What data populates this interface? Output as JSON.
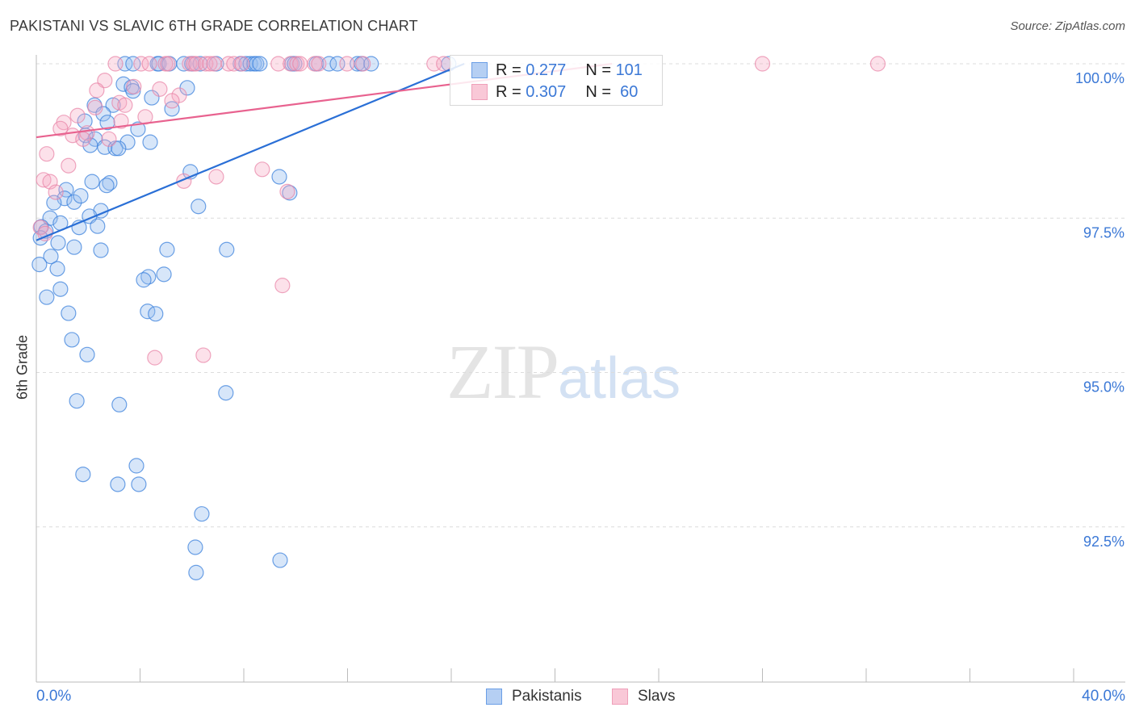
{
  "title": "PAKISTANI VS SLAVIC 6TH GRADE CORRELATION CHART",
  "source": "Source: ZipAtlas.com",
  "watermark": {
    "zip": "ZIP",
    "atlas": "atlas"
  },
  "legend": {
    "rows": [
      {
        "r_label": "R = ",
        "r_value": "0.277",
        "n_label": "N = ",
        "n_value": "101"
      },
      {
        "r_label": "R = ",
        "r_value": "0.307",
        "n_label": "N = ",
        "n_value": "60"
      }
    ]
  },
  "chart_data": {
    "type": "scatter",
    "title": "PAKISTANI VS SLAVIC 6TH GRADE CORRELATION CHART",
    "xlabel": "",
    "ylabel": "6th Grade",
    "xlim": [
      0,
      40
    ],
    "ylim": [
      90,
      100.3
    ],
    "x_tick_labels": [
      "0.0%",
      "40.0%"
    ],
    "y_ticks": [
      100,
      97.5,
      95,
      92.5
    ],
    "y_tick_labels": [
      "100.0%",
      "97.5%",
      "95.0%",
      "92.5%"
    ],
    "grid": true,
    "legend_position": "top-center",
    "colors": {
      "Pakistanis": "#4a8ee0",
      "Slavs": "#e890ad",
      "Pakistanis_line": "#2a6fd6",
      "Slavs_line": "#e8628f"
    },
    "series": [
      {
        "name": "Pakistanis",
        "R": 0.277,
        "N": 101,
        "trend": [
          [
            0,
            97.14
          ],
          [
            16.5,
            100.0
          ]
        ],
        "points": [
          [
            3.42,
            100
          ],
          [
            3.73,
            100
          ],
          [
            4.67,
            100
          ],
          [
            4.73,
            100
          ],
          [
            5.13,
            100
          ],
          [
            5.69,
            100
          ],
          [
            6.0,
            100
          ],
          [
            6.32,
            100
          ],
          [
            6.94,
            100
          ],
          [
            7.87,
            100
          ],
          [
            8.09,
            100
          ],
          [
            8.25,
            100
          ],
          [
            8.4,
            100
          ],
          [
            8.49,
            100
          ],
          [
            8.62,
            100
          ],
          [
            9.86,
            100
          ],
          [
            9.96,
            100
          ],
          [
            10.8,
            100
          ],
          [
            11.29,
            100
          ],
          [
            11.61,
            100
          ],
          [
            12.38,
            100
          ],
          [
            12.54,
            100
          ],
          [
            12.91,
            100
          ],
          [
            15.9,
            100
          ],
          [
            3.36,
            99.67
          ],
          [
            3.67,
            99.62
          ],
          [
            3.73,
            99.56
          ],
          [
            5.82,
            99.61
          ],
          [
            4.45,
            99.45
          ],
          [
            5.23,
            99.27
          ],
          [
            2.24,
            99.33
          ],
          [
            2.96,
            99.33
          ],
          [
            2.58,
            99.19
          ],
          [
            1.87,
            99.07
          ],
          [
            2.74,
            99.05
          ],
          [
            3.92,
            98.94
          ],
          [
            1.9,
            98.84
          ],
          [
            2.27,
            98.78
          ],
          [
            2.08,
            98.68
          ],
          [
            3.52,
            98.73
          ],
          [
            4.39,
            98.73
          ],
          [
            2.64,
            98.65
          ],
          [
            3.05,
            98.63
          ],
          [
            3.17,
            98.63
          ],
          [
            5.94,
            98.25
          ],
          [
            2.15,
            98.09
          ],
          [
            2.83,
            98.07
          ],
          [
            2.71,
            98.03
          ],
          [
            9.37,
            98.17
          ],
          [
            9.77,
            97.91
          ],
          [
            1.15,
            97.96
          ],
          [
            1.09,
            97.82
          ],
          [
            0.68,
            97.75
          ],
          [
            1.46,
            97.76
          ],
          [
            1.71,
            97.86
          ],
          [
            6.25,
            97.69
          ],
          [
            2.49,
            97.62
          ],
          [
            0.53,
            97.5
          ],
          [
            2.05,
            97.53
          ],
          [
            0.93,
            97.42
          ],
          [
            2.36,
            97.37
          ],
          [
            1.65,
            97.35
          ],
          [
            0.19,
            97.36
          ],
          [
            0.37,
            97.29
          ],
          [
            0.16,
            97.18
          ],
          [
            0.84,
            97.1
          ],
          [
            1.46,
            97.03
          ],
          [
            2.49,
            96.98
          ],
          [
            5.04,
            96.99
          ],
          [
            7.34,
            96.99
          ],
          [
            0.56,
            96.88
          ],
          [
            0.12,
            96.75
          ],
          [
            0.81,
            96.68
          ],
          [
            4.32,
            96.55
          ],
          [
            4.14,
            96.5
          ],
          [
            4.92,
            96.59
          ],
          [
            0.93,
            96.35
          ],
          [
            0.4,
            96.22
          ],
          [
            1.24,
            95.96
          ],
          [
            4.29,
            95.99
          ],
          [
            4.6,
            95.95
          ],
          [
            1.37,
            95.53
          ],
          [
            1.96,
            95.29
          ],
          [
            1.56,
            94.54
          ],
          [
            3.2,
            94.48
          ],
          [
            7.31,
            94.67
          ],
          [
            1.8,
            93.35
          ],
          [
            3.86,
            93.49
          ],
          [
            3.14,
            93.19
          ],
          [
            3.95,
            93.19
          ],
          [
            6.38,
            92.71
          ],
          [
            6.13,
            92.17
          ],
          [
            9.4,
            91.96
          ],
          [
            6.16,
            91.76
          ]
        ]
      },
      {
        "name": "Slavs",
        "R": 0.307,
        "N": 60,
        "trend": [
          [
            0,
            98.81
          ],
          [
            22.2,
            100.0
          ]
        ],
        "points": [
          [
            3.05,
            100
          ],
          [
            4.04,
            100
          ],
          [
            4.36,
            100
          ],
          [
            4.98,
            100
          ],
          [
            5.07,
            100
          ],
          [
            5.91,
            100
          ],
          [
            6.07,
            100
          ],
          [
            6.16,
            100
          ],
          [
            6.53,
            100
          ],
          [
            6.69,
            100
          ],
          [
            6.85,
            100
          ],
          [
            7.41,
            100
          ],
          [
            7.62,
            100
          ],
          [
            7.93,
            100
          ],
          [
            9.33,
            100
          ],
          [
            9.8,
            100
          ],
          [
            10.05,
            100
          ],
          [
            10.17,
            100
          ],
          [
            10.73,
            100
          ],
          [
            10.89,
            100
          ],
          [
            11.98,
            100
          ],
          [
            12.6,
            100
          ],
          [
            15.34,
            100
          ],
          [
            15.71,
            100
          ],
          [
            28.0,
            100
          ],
          [
            32.45,
            100
          ],
          [
            2.64,
            99.73
          ],
          [
            2.33,
            99.57
          ],
          [
            3.76,
            99.63
          ],
          [
            4.76,
            99.59
          ],
          [
            5.51,
            99.49
          ],
          [
            5.23,
            99.4
          ],
          [
            3.2,
            99.37
          ],
          [
            3.42,
            99.33
          ],
          [
            2.27,
            99.29
          ],
          [
            1.59,
            99.16
          ],
          [
            4.2,
            99.14
          ],
          [
            3.27,
            99.07
          ],
          [
            1.06,
            99.05
          ],
          [
            0.93,
            98.95
          ],
          [
            1.4,
            98.84
          ],
          [
            1.96,
            98.88
          ],
          [
            2.8,
            98.78
          ],
          [
            1.8,
            98.78
          ],
          [
            0.4,
            98.54
          ],
          [
            1.24,
            98.35
          ],
          [
            8.71,
            98.29
          ],
          [
            0.28,
            98.12
          ],
          [
            0.53,
            98.09
          ],
          [
            5.69,
            98.1
          ],
          [
            6.94,
            98.17
          ],
          [
            0.75,
            97.92
          ],
          [
            9.68,
            97.93
          ],
          [
            0.16,
            97.35
          ],
          [
            0.34,
            97.25
          ],
          [
            9.49,
            96.41
          ],
          [
            4.57,
            95.24
          ],
          [
            6.44,
            95.28
          ]
        ]
      }
    ]
  }
}
